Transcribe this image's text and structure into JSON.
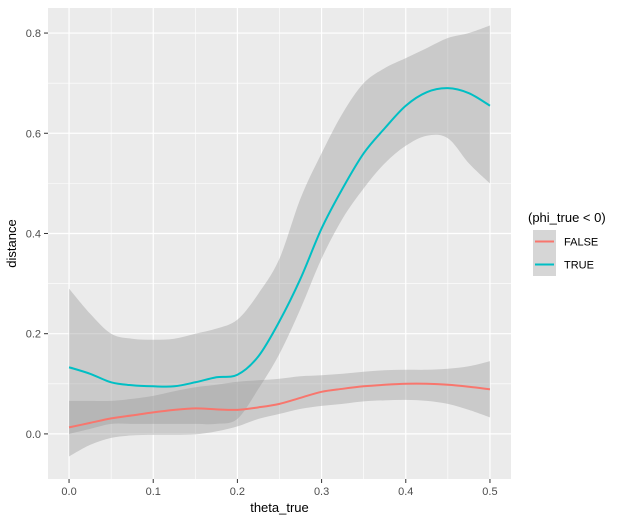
{
  "chart_data": {
    "type": "line",
    "xlabel": "theta_true",
    "ylabel": "distance",
    "xlim": [
      -0.025,
      0.525
    ],
    "ylim": [
      -0.09,
      0.85
    ],
    "x_ticks": [
      0.0,
      0.1,
      0.2,
      0.3,
      0.4,
      0.5
    ],
    "x_tick_labels": [
      "0.0",
      "0.1",
      "0.2",
      "0.3",
      "0.4",
      "0.5"
    ],
    "y_ticks": [
      0.0,
      0.2,
      0.4,
      0.6,
      0.8
    ],
    "y_tick_labels": [
      "0.0",
      "0.2",
      "0.4",
      "0.6",
      "0.8"
    ],
    "grid": true,
    "legend": {
      "title": "(phi_true < 0)",
      "placement": "right"
    },
    "series": [
      {
        "name": "FALSE",
        "color": "#F8766D",
        "x": [
          0.0,
          0.025,
          0.05,
          0.075,
          0.1,
          0.125,
          0.15,
          0.175,
          0.2,
          0.225,
          0.25,
          0.275,
          0.3,
          0.325,
          0.35,
          0.375,
          0.4,
          0.425,
          0.45,
          0.475,
          0.5
        ],
        "y": [
          0.013,
          0.022,
          0.031,
          0.037,
          0.043,
          0.048,
          0.051,
          0.049,
          0.048,
          0.053,
          0.06,
          0.072,
          0.084,
          0.09,
          0.095,
          0.098,
          0.1,
          0.1,
          0.098,
          0.094,
          0.089
        ],
        "lower": [
          -0.045,
          -0.022,
          -0.008,
          -0.003,
          -0.002,
          -0.002,
          -0.001,
          0.005,
          0.015,
          0.03,
          0.04,
          0.05,
          0.056,
          0.06,
          0.065,
          0.067,
          0.068,
          0.066,
          0.06,
          0.048,
          0.033
        ],
        "upper": [
          0.066,
          0.066,
          0.066,
          0.07,
          0.076,
          0.085,
          0.093,
          0.098,
          0.104,
          0.107,
          0.11,
          0.115,
          0.117,
          0.12,
          0.124,
          0.127,
          0.128,
          0.128,
          0.13,
          0.135,
          0.145
        ]
      },
      {
        "name": "TRUE",
        "color": "#00BFC4",
        "x": [
          0.0,
          0.025,
          0.05,
          0.075,
          0.1,
          0.125,
          0.15,
          0.175,
          0.2,
          0.225,
          0.25,
          0.275,
          0.3,
          0.325,
          0.35,
          0.375,
          0.4,
          0.425,
          0.45,
          0.475,
          0.5
        ],
        "y": [
          0.133,
          0.12,
          0.103,
          0.097,
          0.095,
          0.095,
          0.103,
          0.113,
          0.118,
          0.155,
          0.225,
          0.31,
          0.41,
          0.49,
          0.56,
          0.61,
          0.655,
          0.682,
          0.69,
          0.68,
          0.655
        ],
        "lower": [
          0.0,
          0.01,
          0.02,
          0.02,
          0.02,
          0.02,
          0.02,
          0.02,
          0.03,
          0.09,
          0.16,
          0.25,
          0.35,
          0.43,
          0.49,
          0.54,
          0.575,
          0.595,
          0.59,
          0.54,
          0.5
        ],
        "upper": [
          0.29,
          0.24,
          0.2,
          0.19,
          0.188,
          0.19,
          0.2,
          0.21,
          0.228,
          0.28,
          0.35,
          0.47,
          0.56,
          0.64,
          0.7,
          0.73,
          0.75,
          0.77,
          0.79,
          0.8,
          0.815
        ]
      }
    ]
  },
  "theme": {
    "panel_background": "#EBEBEB",
    "ribbon_color": "#999999"
  }
}
